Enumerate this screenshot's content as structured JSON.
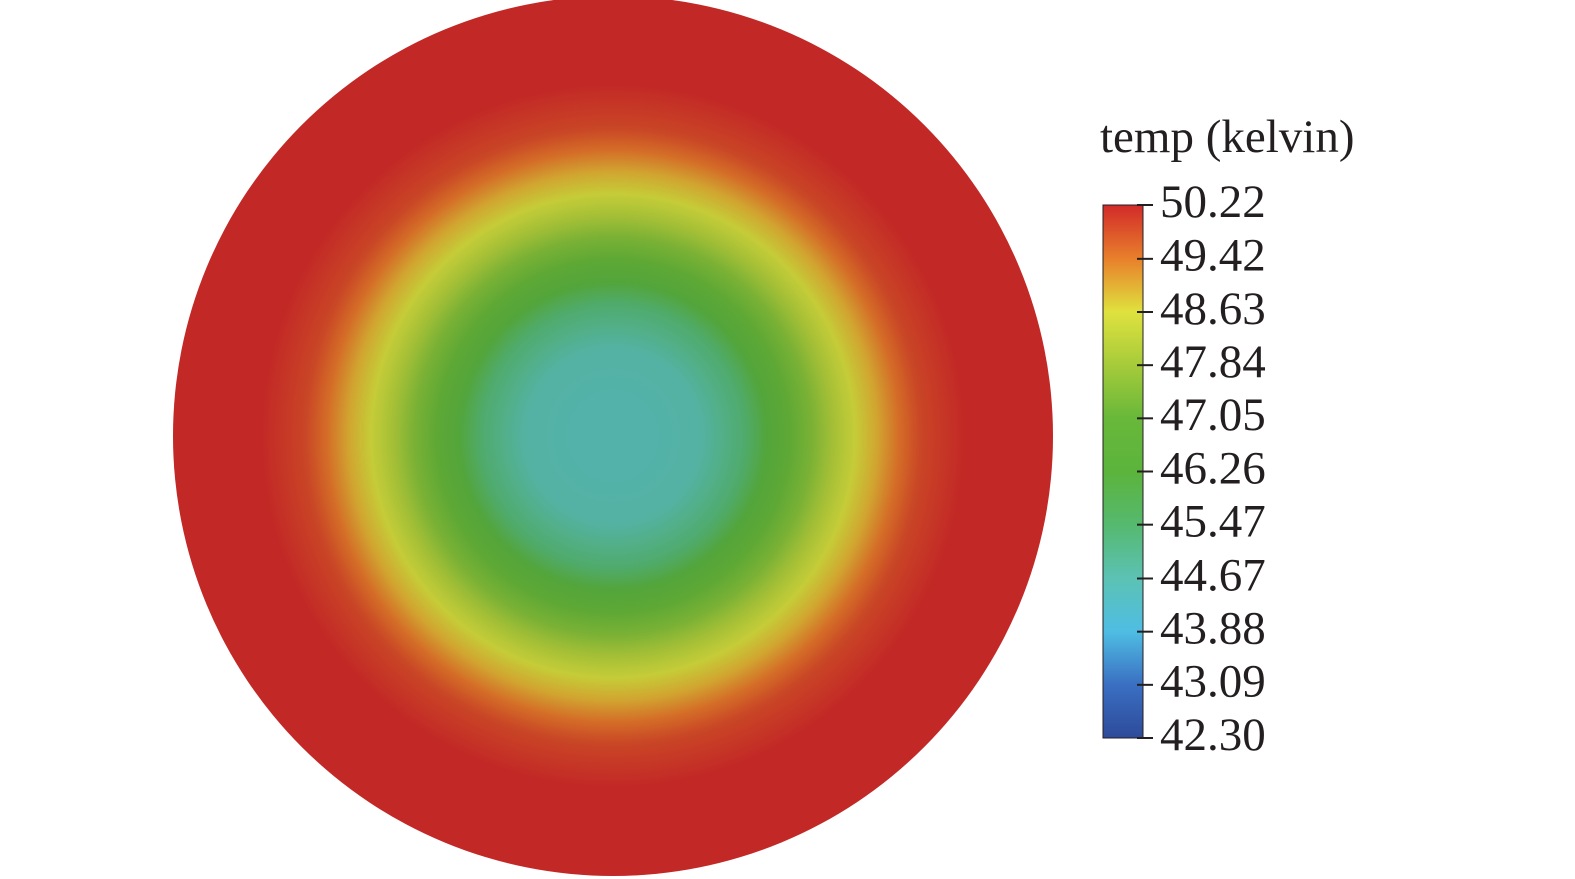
{
  "chart_data": {
    "type": "contour",
    "colorbar_title": "temp (kelvin)",
    "clim": [
      42.3,
      50.22
    ],
    "cticks": [
      {
        "value": 42.3,
        "label": "42.30"
      },
      43.09,
      43.88,
      44.67,
      45.47,
      46.26,
      47.05,
      47.84,
      48.63,
      49.42,
      50.22
    ],
    "colormap": [
      "#2e4a9a",
      "#3a6fc2",
      "#4fbde3",
      "#5cc2b4",
      "#55b96f",
      "#5cb43c",
      "#68b83a",
      "#a6cb3a",
      "#dfe23e",
      "#e8802b",
      "#d22a2a"
    ],
    "xlim": [
      0,
      1
    ],
    "x": [
      0,
      0.1,
      0.2,
      0.3,
      0.35,
      0.4,
      0.45,
      0.5,
      0.55,
      0.6,
      0.65,
      0.7,
      0.8,
      1
    ],
    "values": [
      44.6,
      44.6,
      44.7,
      45.4,
      46.2,
      46.9,
      47.4,
      48.0,
      48.5,
      49.0,
      49.5,
      49.9,
      50.2,
      50.2
    ]
  }
}
